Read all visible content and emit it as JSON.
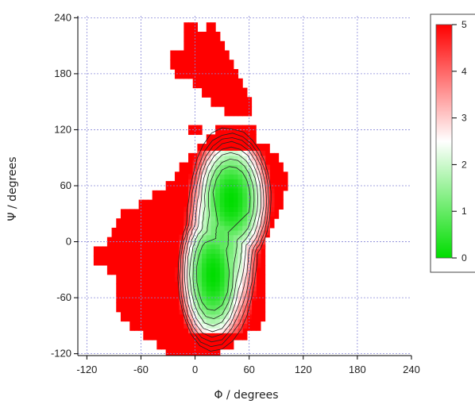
{
  "chart_data": {
    "type": "heatmap",
    "xlabel": "Φ / degrees",
    "ylabel": "Ψ / degrees",
    "xlim": [
      -130,
      240
    ],
    "ylim": [
      -122,
      242
    ],
    "xticks": [
      -120,
      -60,
      0,
      60,
      120,
      180,
      240
    ],
    "yticks": [
      -120,
      -60,
      0,
      60,
      120,
      180,
      240
    ],
    "grid": true,
    "contour_levels": [
      0.5,
      1.0,
      1.5,
      2.0,
      2.5,
      3.0,
      3.5,
      4.0,
      4.5
    ],
    "colorbar": {
      "min": 0,
      "max": 5,
      "ticks": [
        0,
        1,
        2,
        3,
        4,
        5
      ],
      "colors": [
        "#00dd00",
        "#ffffff",
        "#ff0000"
      ],
      "placement": "right"
    },
    "cell_size_deg": 10,
    "cap_value": 5,
    "capped_region_rows": [
      {
        "psi": 230,
        "phi_from": -10,
        "phi_to": 0
      },
      {
        "psi": 230,
        "phi_from": 15,
        "phi_to": 20
      },
      {
        "psi": 220,
        "phi_from": -10,
        "phi_to": 10
      },
      {
        "psi": 220,
        "phi_from": 15,
        "phi_to": 25
      },
      {
        "psi": 210,
        "phi_from": -10,
        "phi_to": 30
      },
      {
        "psi": 200,
        "phi_from": -25,
        "phi_to": 35
      },
      {
        "psi": 190,
        "phi_from": -25,
        "phi_to": 40
      },
      {
        "psi": 180,
        "phi_from": -20,
        "phi_to": 45
      },
      {
        "psi": 170,
        "phi_from": 0,
        "phi_to": 50
      },
      {
        "psi": 160,
        "phi_from": 10,
        "phi_to": 55
      },
      {
        "psi": 150,
        "phi_from": 20,
        "phi_to": 60
      },
      {
        "psi": 140,
        "phi_from": 35,
        "phi_to": 60
      },
      {
        "psi": 120,
        "phi_from": -5,
        "phi_to": 5
      },
      {
        "psi": 120,
        "phi_from": 25,
        "phi_to": 65
      },
      {
        "psi": 110,
        "phi_from": 15,
        "phi_to": 65
      },
      {
        "psi": 100,
        "phi_from": 5,
        "phi_to": 80
      },
      {
        "psi": 90,
        "phi_from": -5,
        "phi_to": 90
      },
      {
        "psi": 80,
        "phi_from": -15,
        "phi_to": 95
      },
      {
        "psi": 70,
        "phi_from": -20,
        "phi_to": 100
      },
      {
        "psi": 60,
        "phi_from": -30,
        "phi_to": 100
      },
      {
        "psi": 50,
        "phi_from": -45,
        "phi_to": 95
      },
      {
        "psi": 40,
        "phi_from": -60,
        "phi_to": 95
      },
      {
        "psi": 30,
        "phi_from": -80,
        "phi_to": 90
      },
      {
        "psi": 20,
        "phi_from": -85,
        "phi_to": 85
      },
      {
        "psi": 10,
        "phi_from": -90,
        "phi_to": 80
      },
      {
        "psi": 0,
        "phi_from": -95,
        "phi_to": 75
      },
      {
        "psi": -10,
        "phi_from": -110,
        "phi_to": 75
      },
      {
        "psi": -20,
        "phi_from": -110,
        "phi_to": 75
      },
      {
        "psi": -30,
        "phi_from": -95,
        "phi_to": 75
      },
      {
        "psi": -40,
        "phi_from": -85,
        "phi_to": 75
      },
      {
        "psi": -50,
        "phi_from": -85,
        "phi_to": 75
      },
      {
        "psi": -60,
        "phi_from": -85,
        "phi_to": 75
      },
      {
        "psi": -70,
        "phi_from": -85,
        "phi_to": 75
      },
      {
        "psi": -80,
        "phi_from": -80,
        "phi_to": 75
      },
      {
        "psi": -90,
        "phi_from": -70,
        "phi_to": 70
      },
      {
        "psi": -100,
        "phi_from": -55,
        "phi_to": 55
      },
      {
        "psi": -110,
        "phi_from": -40,
        "phi_to": 40
      },
      {
        "psi": -120,
        "phi_from": -30,
        "phi_to": 10
      },
      {
        "psi": -120,
        "phi_from": 15,
        "phi_to": 25
      }
    ],
    "minima": [
      {
        "phi": 40,
        "psi": 45,
        "value": 0
      },
      {
        "phi": 20,
        "psi": -35,
        "value": 0
      }
    ]
  }
}
